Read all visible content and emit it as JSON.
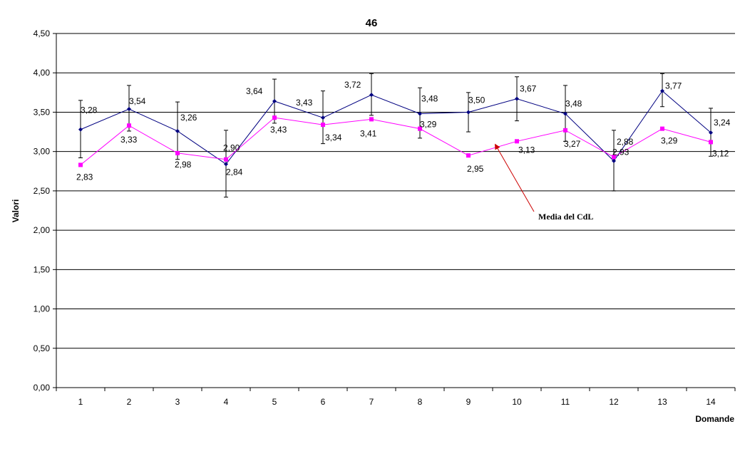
{
  "chart_data": {
    "type": "line",
    "title": "46",
    "xlabel": "Domande",
    "ylabel": "Valori",
    "ylim": [
      0,
      4.5
    ],
    "ytick_step": 0.5,
    "ytick_labels": [
      "0,00",
      "0,50",
      "1,00",
      "1,50",
      "2,00",
      "2,50",
      "3,00",
      "3,50",
      "4,00",
      "4,50"
    ],
    "categories": [
      "1",
      "2",
      "3",
      "4",
      "5",
      "6",
      "7",
      "8",
      "9",
      "10",
      "11",
      "12",
      "13",
      "14"
    ],
    "grid": true,
    "legend": "none",
    "series": [
      {
        "color": "#000080",
        "marker": "diamond",
        "values": [
          3.28,
          3.54,
          3.26,
          2.84,
          3.64,
          3.43,
          3.72,
          3.48,
          3.5,
          3.67,
          3.48,
          2.88,
          3.77,
          3.24
        ],
        "labels": [
          "3,28",
          "3,54",
          "3,26",
          "2,84",
          "3,64",
          "3,43",
          "3,72",
          "3,48",
          "3,50",
          "3,67",
          "3,48",
          "2,88",
          "3,77",
          "3,24"
        ],
        "error_low": [
          2.92,
          3.26,
          2.9,
          2.42,
          3.36,
          3.1,
          3.46,
          3.17,
          3.25,
          3.39,
          3.13,
          2.5,
          3.57,
          2.94
        ],
        "error_high": [
          3.65,
          3.84,
          3.63,
          3.27,
          3.92,
          3.77,
          3.99,
          3.81,
          3.75,
          3.95,
          3.84,
          3.27,
          3.99,
          3.55
        ]
      },
      {
        "name": "Media del CdL",
        "color": "#ff00ff",
        "marker": "square",
        "values": [
          2.83,
          3.33,
          2.98,
          2.9,
          3.43,
          3.34,
          3.41,
          3.29,
          2.95,
          3.13,
          3.27,
          2.93,
          3.29,
          3.12
        ],
        "labels": [
          "2,83",
          "3,33",
          "2,98",
          "2,90",
          "3,43",
          "3,34",
          "3,41",
          "3,29",
          "2,95",
          "3,13",
          "3,27",
          "2,93",
          "3,29",
          "3,12"
        ]
      }
    ],
    "annotation": {
      "text": "Media del CdL",
      "arrow_color": "#cc0000",
      "target_series": 1,
      "target_index": 9
    }
  }
}
